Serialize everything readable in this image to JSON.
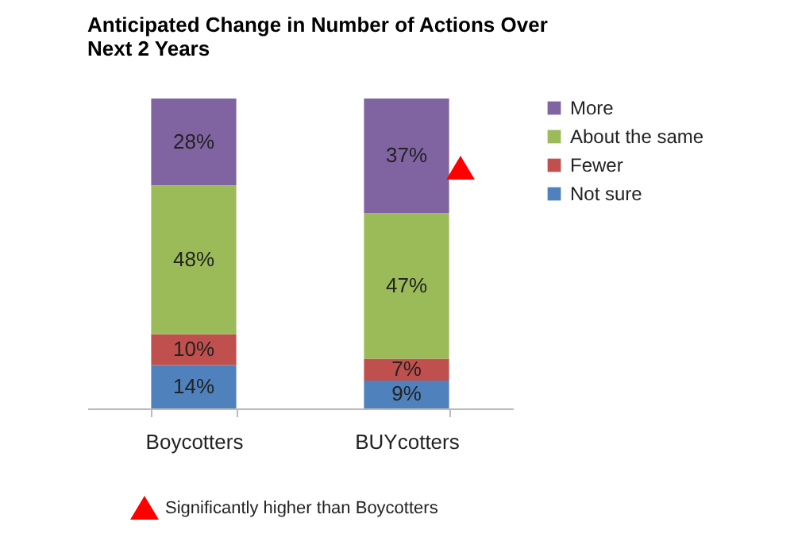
{
  "chart_data": {
    "type": "bar",
    "stacked": true,
    "title": "Anticipated Change in Number of Actions Over Next 2 Years",
    "categories": [
      "Boycotters",
      "BUYcotters"
    ],
    "series": [
      {
        "name": "Not sure",
        "color": "#4f81bd",
        "values": [
          14,
          9
        ],
        "value_labels": [
          "14%",
          "9%"
        ]
      },
      {
        "name": "Fewer",
        "color": "#c0504d",
        "values": [
          10,
          7
        ],
        "value_labels": [
          "10%",
          "7%"
        ]
      },
      {
        "name": "About the same",
        "color": "#9bbb59",
        "values": [
          48,
          47
        ],
        "value_labels": [
          "48%",
          "47%"
        ]
      },
      {
        "name": "More",
        "color": "#8064a2",
        "values": [
          28,
          37
        ],
        "value_labels": [
          "28%",
          "37%"
        ]
      }
    ],
    "ylim": [
      0,
      100
    ],
    "tick_labels": "x",
    "legend": "right",
    "annotations": [
      "Significantly higher than Boycotters"
    ]
  }
}
